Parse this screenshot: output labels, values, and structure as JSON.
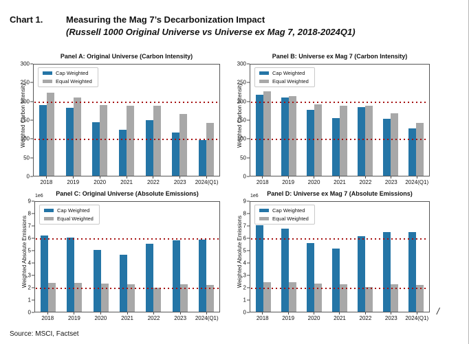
{
  "header": {
    "label": "Chart 1.",
    "title": "Measuring the Mag 7’s Decarbonization Impact",
    "subtitle": "(Russell 1000 Original Universe vs Universe ex Mag 7, 2018-2024Q1)"
  },
  "legend": {
    "cap_label": "Cap Weighted",
    "equal_label": "Equal Weighted"
  },
  "colors": {
    "cap_weighted": "#2475a6",
    "equal_weighted": "#a8a8a8",
    "reference_line": "#a50f0f"
  },
  "footer": {
    "source": "Source: MSCI, Factset",
    "slash_mark": "/"
  },
  "chart_data": [
    {
      "id": "panel-a",
      "type": "bar",
      "title": "Panel A: Original Universe (Carbon Intensity)",
      "ylabel": "Weighted Carbon Intensity",
      "categories": [
        "2018",
        "2019",
        "2020",
        "2021",
        "2022",
        "2023",
        "2024(Q1)"
      ],
      "series": [
        {
          "name": "Cap Weighted",
          "values": [
            190,
            184,
            145,
            124,
            150,
            117,
            97
          ]
        },
        {
          "name": "Equal Weighted",
          "values": [
            224,
            212,
            191,
            188,
            188,
            166,
            142
          ]
        }
      ],
      "ylim": [
        0,
        300
      ],
      "yticks": [
        0,
        50,
        100,
        150,
        200,
        250,
        300
      ],
      "reference_lines": [
        200,
        100
      ],
      "offset_label": "",
      "legend_position": "upper-left",
      "grid": false
    },
    {
      "id": "panel-b",
      "type": "bar",
      "title": "Panel B: Universe ex Mag 7 (Carbon Intensity)",
      "ylabel": "Weighted Carbon Intensity",
      "categories": [
        "2018",
        "2019",
        "2020",
        "2021",
        "2022",
        "2023",
        "2024(Q1)"
      ],
      "series": [
        {
          "name": "Cap Weighted",
          "values": [
            218,
            211,
            178,
            155,
            185,
            153,
            127
          ]
        },
        {
          "name": "Equal Weighted",
          "values": [
            227,
            214,
            192,
            189,
            189,
            168,
            143
          ]
        }
      ],
      "ylim": [
        0,
        300
      ],
      "yticks": [
        0,
        50,
        100,
        150,
        200,
        250,
        300
      ],
      "reference_lines": [
        200,
        100
      ],
      "offset_label": "",
      "legend_position": "upper-left",
      "grid": false
    },
    {
      "id": "panel-c",
      "type": "bar",
      "title": "Panel C: Original Universe (Absolute Emissions)",
      "ylabel": "Weighted Absolute Emissions",
      "categories": [
        "2018",
        "2019",
        "2020",
        "2021",
        "2022",
        "2023",
        "2024(Q1)"
      ],
      "series": [
        {
          "name": "Cap Weighted",
          "values": [
            6.25,
            6.05,
            5.05,
            4.65,
            5.55,
            5.85,
            5.9
          ]
        },
        {
          "name": "Equal Weighted",
          "values": [
            2.35,
            2.35,
            2.3,
            2.25,
            1.95,
            2.25,
            2.2
          ]
        }
      ],
      "ylim": [
        0,
        9
      ],
      "yticks": [
        0,
        1,
        2,
        3,
        4,
        5,
        6,
        7,
        8,
        9
      ],
      "reference_lines": [
        6,
        2
      ],
      "offset_label": "1e6",
      "legend_position": "upper-left",
      "grid": false
    },
    {
      "id": "panel-d",
      "type": "bar",
      "title": "Panel D: Universe ex Mag 7 (Absolute Emissions)",
      "ylabel": "Weighted Absolute Emissions",
      "categories": [
        "2018",
        "2019",
        "2020",
        "2021",
        "2022",
        "2023",
        "2024(Q1)"
      ],
      "series": [
        {
          "name": "Cap Weighted",
          "values": [
            7.1,
            6.8,
            5.6,
            5.2,
            6.2,
            6.55,
            6.55
          ]
        },
        {
          "name": "Equal Weighted",
          "values": [
            2.4,
            2.4,
            2.3,
            2.25,
            2.0,
            2.25,
            2.2
          ]
        }
      ],
      "ylim": [
        0,
        9
      ],
      "yticks": [
        0,
        1,
        2,
        3,
        4,
        5,
        6,
        7,
        8,
        9
      ],
      "reference_lines": [
        6,
        2
      ],
      "offset_label": "1e6",
      "legend_position": "upper-left",
      "grid": false
    }
  ]
}
